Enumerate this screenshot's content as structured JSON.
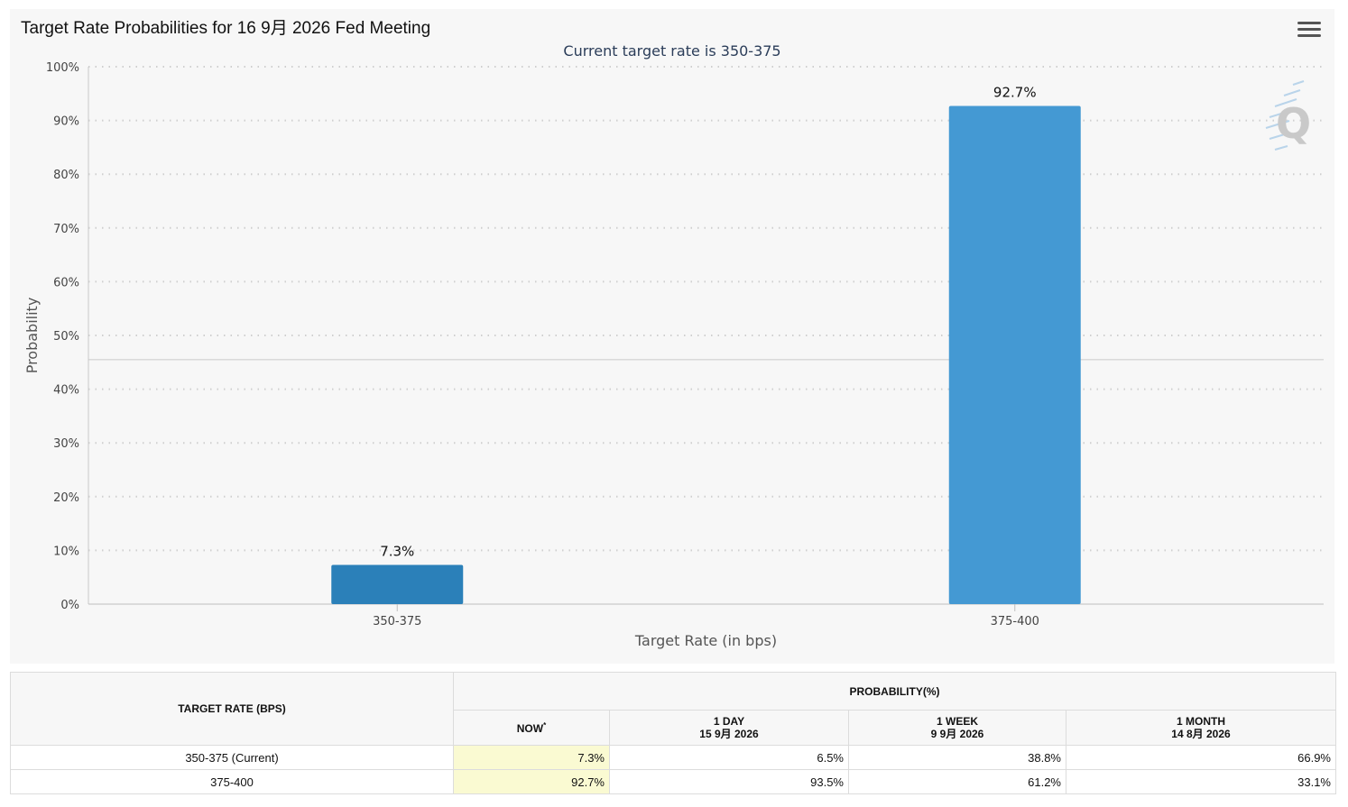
{
  "chart": {
    "title": "Target Rate Probabilities for 16 9月 2026 Fed Meeting",
    "subtitle": "Current target rate is 350-375",
    "menu_icon": "hamburger-menu-icon",
    "watermark_icon": "q-logo-icon"
  },
  "chart_data": {
    "type": "bar",
    "categories": [
      "350-375",
      "375-400"
    ],
    "values": [
      7.3,
      92.7
    ],
    "data_labels": [
      "7.3%",
      "92.7%"
    ],
    "xlabel": "Target Rate (in bps)",
    "ylabel": "Probability",
    "ylim": [
      0,
      100
    ],
    "yticks": [
      "0%",
      "10%",
      "20%",
      "30%",
      "40%",
      "50%",
      "60%",
      "70%",
      "80%",
      "90%",
      "100%"
    ],
    "reference_line": 45.5,
    "grid": "dotted horizontal",
    "bar_colors": [
      "#2b80b9",
      "#4499d3"
    ]
  },
  "table": {
    "header_rate": "TARGET RATE (BPS)",
    "header_prob": "PROBABILITY(%)",
    "columns": [
      {
        "line1": "NOW",
        "sup": "*",
        "line2": ""
      },
      {
        "line1": "1 DAY",
        "line2": "15 9月 2026"
      },
      {
        "line1": "1 WEEK",
        "line2": "9 9月 2026"
      },
      {
        "line1": "1 MONTH",
        "line2": "14 8月 2026"
      }
    ],
    "rows": [
      {
        "rate": "350-375 (Current)",
        "now": "7.3%",
        "day": "6.5%",
        "week": "38.8%",
        "month": "66.9%"
      },
      {
        "rate": "375-400",
        "now": "92.7%",
        "day": "93.5%",
        "week": "61.2%",
        "month": "33.1%"
      }
    ]
  }
}
